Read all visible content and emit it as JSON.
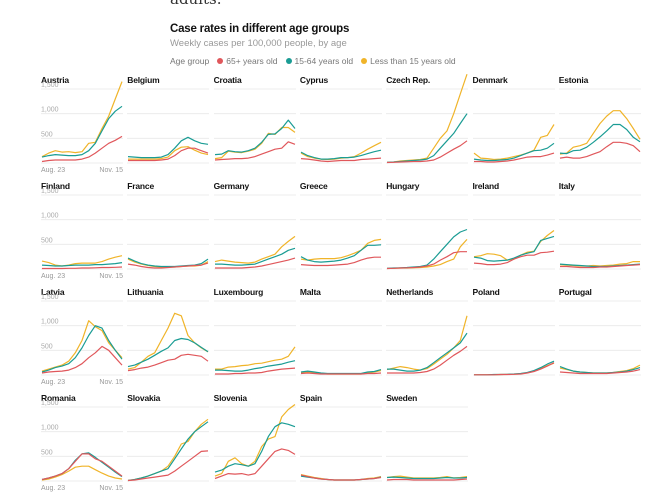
{
  "intro_text": "adults.",
  "chart_data": {
    "type": "line",
    "title": "Case rates in different age groups",
    "subtitle": "Weekly cases per 100,000 people, by age",
    "legend": {
      "label": "Age group",
      "placement": "top"
    },
    "series_names": [
      "65+ years old",
      "15-64 years old",
      "Less than 15 years old"
    ],
    "colors": {
      "65+ years old": "#e0575b",
      "15-64 years old": "#1a9c94",
      "Less than 15 years old": "#f0b429"
    },
    "x_tick_labels": [
      "Aug. 23",
      "Nov. 15"
    ],
    "y_ticks": [
      "500",
      "1,000",
      "1,500"
    ],
    "y_tick_values": [
      500,
      1000,
      1500
    ],
    "ylim": [
      0,
      1500
    ],
    "grid": true,
    "x": [
      "Aug. 23",
      "Aug. 30",
      "Sep. 6",
      "Sep. 13",
      "Sep. 20",
      "Sep. 27",
      "Oct. 4",
      "Oct. 11",
      "Oct. 18",
      "Oct. 25",
      "Nov. 1",
      "Nov. 8",
      "Nov. 15"
    ],
    "panels": [
      {
        "country": "Austria",
        "65+": [
          30,
          50,
          60,
          60,
          60,
          60,
          80,
          120,
          200,
          300,
          400,
          460,
          540
        ],
        "15-64": [
          120,
          150,
          170,
          160,
          150,
          150,
          170,
          250,
          400,
          650,
          900,
          1050,
          1150
        ],
        "<15": [
          130,
          200,
          250,
          220,
          230,
          210,
          230,
          400,
          420,
          700,
          950,
          1300,
          1650
        ]
      },
      {
        "country": "Belgium",
        "65+": [
          50,
          50,
          50,
          50,
          50,
          60,
          80,
          150,
          250,
          300,
          300,
          250,
          200
        ],
        "15-64": [
          130,
          120,
          110,
          110,
          110,
          120,
          170,
          300,
          450,
          520,
          450,
          400,
          380
        ],
        "<15": [
          80,
          80,
          80,
          80,
          80,
          90,
          120,
          250,
          320,
          330,
          260,
          200,
          170
        ]
      },
      {
        "country": "Croatia",
        "65+": [
          60,
          70,
          80,
          90,
          90,
          100,
          130,
          180,
          230,
          280,
          300,
          430,
          380
        ],
        "15-64": [
          170,
          180,
          250,
          230,
          220,
          250,
          300,
          420,
          580,
          590,
          700,
          870,
          700
        ],
        "<15": [
          90,
          110,
          240,
          220,
          210,
          240,
          280,
          400,
          600,
          580,
          720,
          720,
          620
        ]
      },
      {
        "country": "Cyprus",
        "65+": [
          90,
          80,
          60,
          40,
          30,
          40,
          50,
          50,
          50,
          70,
          80,
          90,
          100
        ],
        "15-64": [
          220,
          150,
          110,
          80,
          80,
          90,
          110,
          110,
          120,
          150,
          190,
          230,
          260
        ],
        "<15": [
          200,
          130,
          100,
          80,
          70,
          80,
          100,
          110,
          130,
          200,
          280,
          350,
          420
        ]
      },
      {
        "country": "Czech Rep.",
        "65+": [
          10,
          15,
          20,
          25,
          30,
          30,
          40,
          60,
          120,
          200,
          280,
          350,
          450
        ],
        "15-64": [
          15,
          20,
          30,
          40,
          50,
          60,
          80,
          150,
          300,
          450,
          600,
          800,
          1000
        ],
        "<15": [
          15,
          20,
          40,
          50,
          60,
          70,
          100,
          300,
          500,
          650,
          1000,
          1400,
          1800
        ]
      },
      {
        "country": "Denmark",
        "65+": [
          30,
          30,
          20,
          20,
          30,
          40,
          60,
          90,
          120,
          130,
          130,
          160,
          200
        ],
        "15-64": [
          80,
          60,
          50,
          50,
          60,
          70,
          100,
          150,
          200,
          250,
          260,
          300,
          400
        ],
        "<15": [
          200,
          100,
          90,
          70,
          80,
          100,
          130,
          160,
          200,
          260,
          520,
          560,
          780
        ]
      },
      {
        "country": "Estonia",
        "65+": [
          100,
          120,
          100,
          100,
          130,
          180,
          230,
          330,
          420,
          420,
          400,
          350,
          230
        ],
        "15-64": [
          200,
          190,
          250,
          260,
          320,
          420,
          530,
          650,
          780,
          780,
          680,
          520,
          430
        ],
        "<15": [
          180,
          200,
          320,
          350,
          400,
          600,
          800,
          950,
          1060,
          1060,
          900,
          700,
          480
        ]
      },
      {
        "country": "Finland",
        "65+": [
          10,
          10,
          10,
          10,
          15,
          15,
          20,
          20,
          25,
          30,
          30,
          35,
          40
        ],
        "15-64": [
          80,
          70,
          60,
          60,
          70,
          80,
          80,
          80,
          90,
          90,
          100,
          110,
          130
        ],
        "<15": [
          160,
          130,
          80,
          60,
          80,
          110,
          120,
          120,
          120,
          150,
          200,
          240,
          270
        ]
      },
      {
        "country": "France",
        "65+": [
          100,
          80,
          50,
          30,
          20,
          20,
          30,
          40,
          50,
          60,
          70,
          80,
          120
        ],
        "15-64": [
          220,
          160,
          110,
          80,
          60,
          50,
          50,
          50,
          60,
          70,
          80,
          110,
          200
        ],
        "<15": [
          200,
          140,
          100,
          70,
          50,
          40,
          40,
          40,
          50,
          60,
          60,
          80,
          150
        ]
      },
      {
        "country": "Germany",
        "65+": [
          20,
          20,
          20,
          20,
          20,
          30,
          40,
          60,
          90,
          120,
          150,
          180,
          220
        ],
        "15-64": [
          100,
          100,
          90,
          80,
          80,
          90,
          100,
          150,
          200,
          250,
          300,
          380,
          420
        ],
        "<15": [
          150,
          180,
          160,
          140,
          130,
          120,
          140,
          200,
          250,
          300,
          450,
          560,
          660
        ]
      },
      {
        "country": "Greece",
        "65+": [
          90,
          80,
          70,
          70,
          70,
          80,
          90,
          100,
          130,
          180,
          220,
          240,
          240
        ],
        "15-64": [
          250,
          180,
          150,
          140,
          150,
          160,
          180,
          220,
          270,
          380,
          480,
          480,
          490
        ],
        "<15": [
          200,
          180,
          200,
          210,
          210,
          210,
          230,
          270,
          320,
          380,
          520,
          580,
          600
        ]
      },
      {
        "country": "Hungary",
        "65+": [
          10,
          15,
          20,
          25,
          30,
          40,
          60,
          100,
          180,
          250,
          330,
          350,
          350
        ],
        "15-64": [
          15,
          20,
          25,
          30,
          40,
          50,
          80,
          200,
          350,
          500,
          650,
          750,
          800
        ],
        "<15": [
          10,
          15,
          20,
          20,
          25,
          30,
          40,
          60,
          90,
          150,
          200,
          450,
          600
        ]
      },
      {
        "country": "Ireland",
        "65+": [
          120,
          110,
          90,
          90,
          100,
          130,
          200,
          250,
          280,
          280,
          330,
          340,
          360
        ],
        "15-64": [
          240,
          220,
          170,
          160,
          170,
          180,
          220,
          280,
          320,
          350,
          580,
          620,
          660
        ],
        "<15": [
          250,
          270,
          310,
          300,
          270,
          180,
          200,
          280,
          340,
          360,
          560,
          680,
          780
        ]
      },
      {
        "country": "Italy",
        "65+": [
          50,
          50,
          40,
          30,
          30,
          30,
          40,
          40,
          50,
          60,
          70,
          80,
          90
        ],
        "15-64": [
          100,
          90,
          80,
          70,
          60,
          50,
          50,
          50,
          60,
          70,
          80,
          90,
          100
        ],
        "<15": [
          90,
          80,
          70,
          60,
          60,
          70,
          60,
          70,
          80,
          100,
          110,
          150,
          150
        ]
      },
      {
        "country": "Latvia",
        "65+": [
          40,
          60,
          70,
          80,
          100,
          150,
          230,
          350,
          450,
          580,
          500,
          350,
          200
        ],
        "15-64": [
          60,
          100,
          150,
          180,
          230,
          350,
          550,
          800,
          1000,
          950,
          700,
          500,
          320
        ],
        "<15": [
          80,
          120,
          160,
          200,
          280,
          450,
          700,
          1100,
          980,
          900,
          650,
          500,
          350
        ]
      },
      {
        "country": "Lithuania",
        "65+": [
          90,
          110,
          140,
          160,
          200,
          250,
          300,
          320,
          400,
          420,
          400,
          380,
          280
        ],
        "15-64": [
          170,
          200,
          260,
          320,
          400,
          480,
          550,
          700,
          740,
          720,
          650,
          560,
          470
        ],
        "<15": [
          120,
          150,
          260,
          380,
          450,
          700,
          950,
          1250,
          1200,
          800,
          650,
          550,
          470
        ]
      },
      {
        "country": "Luxembourg",
        "65+": [
          20,
          20,
          20,
          30,
          30,
          40,
          40,
          50,
          80,
          100,
          120,
          130,
          140
        ],
        "15-64": [
          100,
          100,
          90,
          80,
          80,
          100,
          130,
          150,
          180,
          200,
          220,
          260,
          290
        ],
        "<15": [
          120,
          120,
          160,
          170,
          190,
          200,
          230,
          240,
          270,
          300,
          320,
          380,
          570
        ]
      },
      {
        "country": "Malta",
        "65+": [
          30,
          40,
          30,
          20,
          20,
          20,
          20,
          20,
          20,
          20,
          30,
          30,
          40
        ],
        "15-64": [
          60,
          80,
          60,
          40,
          30,
          30,
          30,
          30,
          30,
          30,
          60,
          70,
          110
        ],
        "<15": [
          50,
          60,
          50,
          30,
          20,
          20,
          20,
          20,
          20,
          20,
          40,
          60,
          90
        ]
      },
      {
        "country": "Netherlands",
        "65+": [
          40,
          40,
          40,
          40,
          40,
          50,
          70,
          120,
          200,
          300,
          400,
          480,
          580
        ],
        "15-64": [
          120,
          120,
          100,
          80,
          80,
          100,
          150,
          250,
          350,
          450,
          550,
          650,
          850
        ],
        "<15": [
          110,
          140,
          170,
          150,
          120,
          100,
          130,
          220,
          320,
          420,
          550,
          700,
          1200
        ]
      },
      {
        "country": "Poland",
        "65+": [
          5,
          5,
          5,
          5,
          10,
          10,
          15,
          20,
          40,
          70,
          120,
          180,
          250
        ],
        "15-64": [
          5,
          5,
          5,
          10,
          10,
          15,
          20,
          30,
          50,
          90,
          150,
          220,
          280
        ],
        "<15": [
          5,
          5,
          5,
          8,
          10,
          12,
          18,
          25,
          45,
          80,
          130,
          190,
          240
        ]
      },
      {
        "country": "Portugal",
        "65+": [
          60,
          50,
          40,
          30,
          30,
          30,
          30,
          30,
          40,
          50,
          60,
          80,
          110
        ],
        "15-64": [
          170,
          120,
          80,
          60,
          50,
          40,
          40,
          40,
          50,
          60,
          80,
          110,
          150
        ],
        "<15": [
          140,
          110,
          80,
          60,
          50,
          40,
          40,
          40,
          50,
          70,
          90,
          130,
          200
        ]
      },
      {
        "country": "Romania",
        "65+": [
          30,
          60,
          100,
          150,
          250,
          400,
          550,
          550,
          450,
          400,
          300,
          200,
          100
        ],
        "15-64": [
          30,
          60,
          100,
          150,
          250,
          420,
          550,
          570,
          480,
          380,
          280,
          180,
          90
        ],
        "<15": [
          20,
          40,
          80,
          130,
          200,
          280,
          300,
          300,
          230,
          160,
          100,
          60,
          40
        ]
      },
      {
        "country": "Slovakia",
        "65+": [
          10,
          20,
          40,
          60,
          80,
          100,
          120,
          200,
          300,
          400,
          500,
          600,
          610
        ],
        "15-64": [
          10,
          30,
          60,
          100,
          150,
          200,
          250,
          450,
          650,
          850,
          1000,
          1100,
          1200
        ],
        "<15": [
          10,
          30,
          60,
          100,
          150,
          200,
          300,
          500,
          750,
          800,
          1000,
          1150,
          1250
        ]
      },
      {
        "country": "Slovenia",
        "65+": [
          50,
          100,
          150,
          140,
          150,
          120,
          150,
          300,
          450,
          600,
          650,
          620,
          540
        ],
        "15-64": [
          180,
          220,
          300,
          350,
          330,
          300,
          350,
          600,
          900,
          1100,
          1180,
          1150,
          1100
        ],
        "<15": [
          100,
          150,
          400,
          470,
          350,
          300,
          400,
          700,
          850,
          900,
          1300,
          1450,
          1550
        ]
      },
      {
        "country": "Spain",
        "65+": [
          120,
          90,
          60,
          40,
          30,
          20,
          20,
          20,
          20,
          30,
          40,
          50,
          70
        ],
        "15-64": [
          100,
          80,
          60,
          40,
          30,
          20,
          20,
          20,
          20,
          30,
          40,
          50,
          80
        ],
        "<15": [
          130,
          100,
          70,
          50,
          30,
          20,
          20,
          20,
          20,
          30,
          50,
          60,
          90
        ]
      },
      {
        "country": "Sweden",
        "65+": [
          20,
          30,
          30,
          30,
          20,
          20,
          20,
          20,
          20,
          20,
          20,
          30,
          40
        ],
        "15-64": [
          70,
          80,
          70,
          60,
          50,
          50,
          50,
          50,
          60,
          70,
          60,
          60,
          70
        ],
        "<15": [
          70,
          90,
          100,
          80,
          60,
          60,
          60,
          60,
          70,
          90,
          60,
          70,
          90
        ]
      }
    ]
  }
}
